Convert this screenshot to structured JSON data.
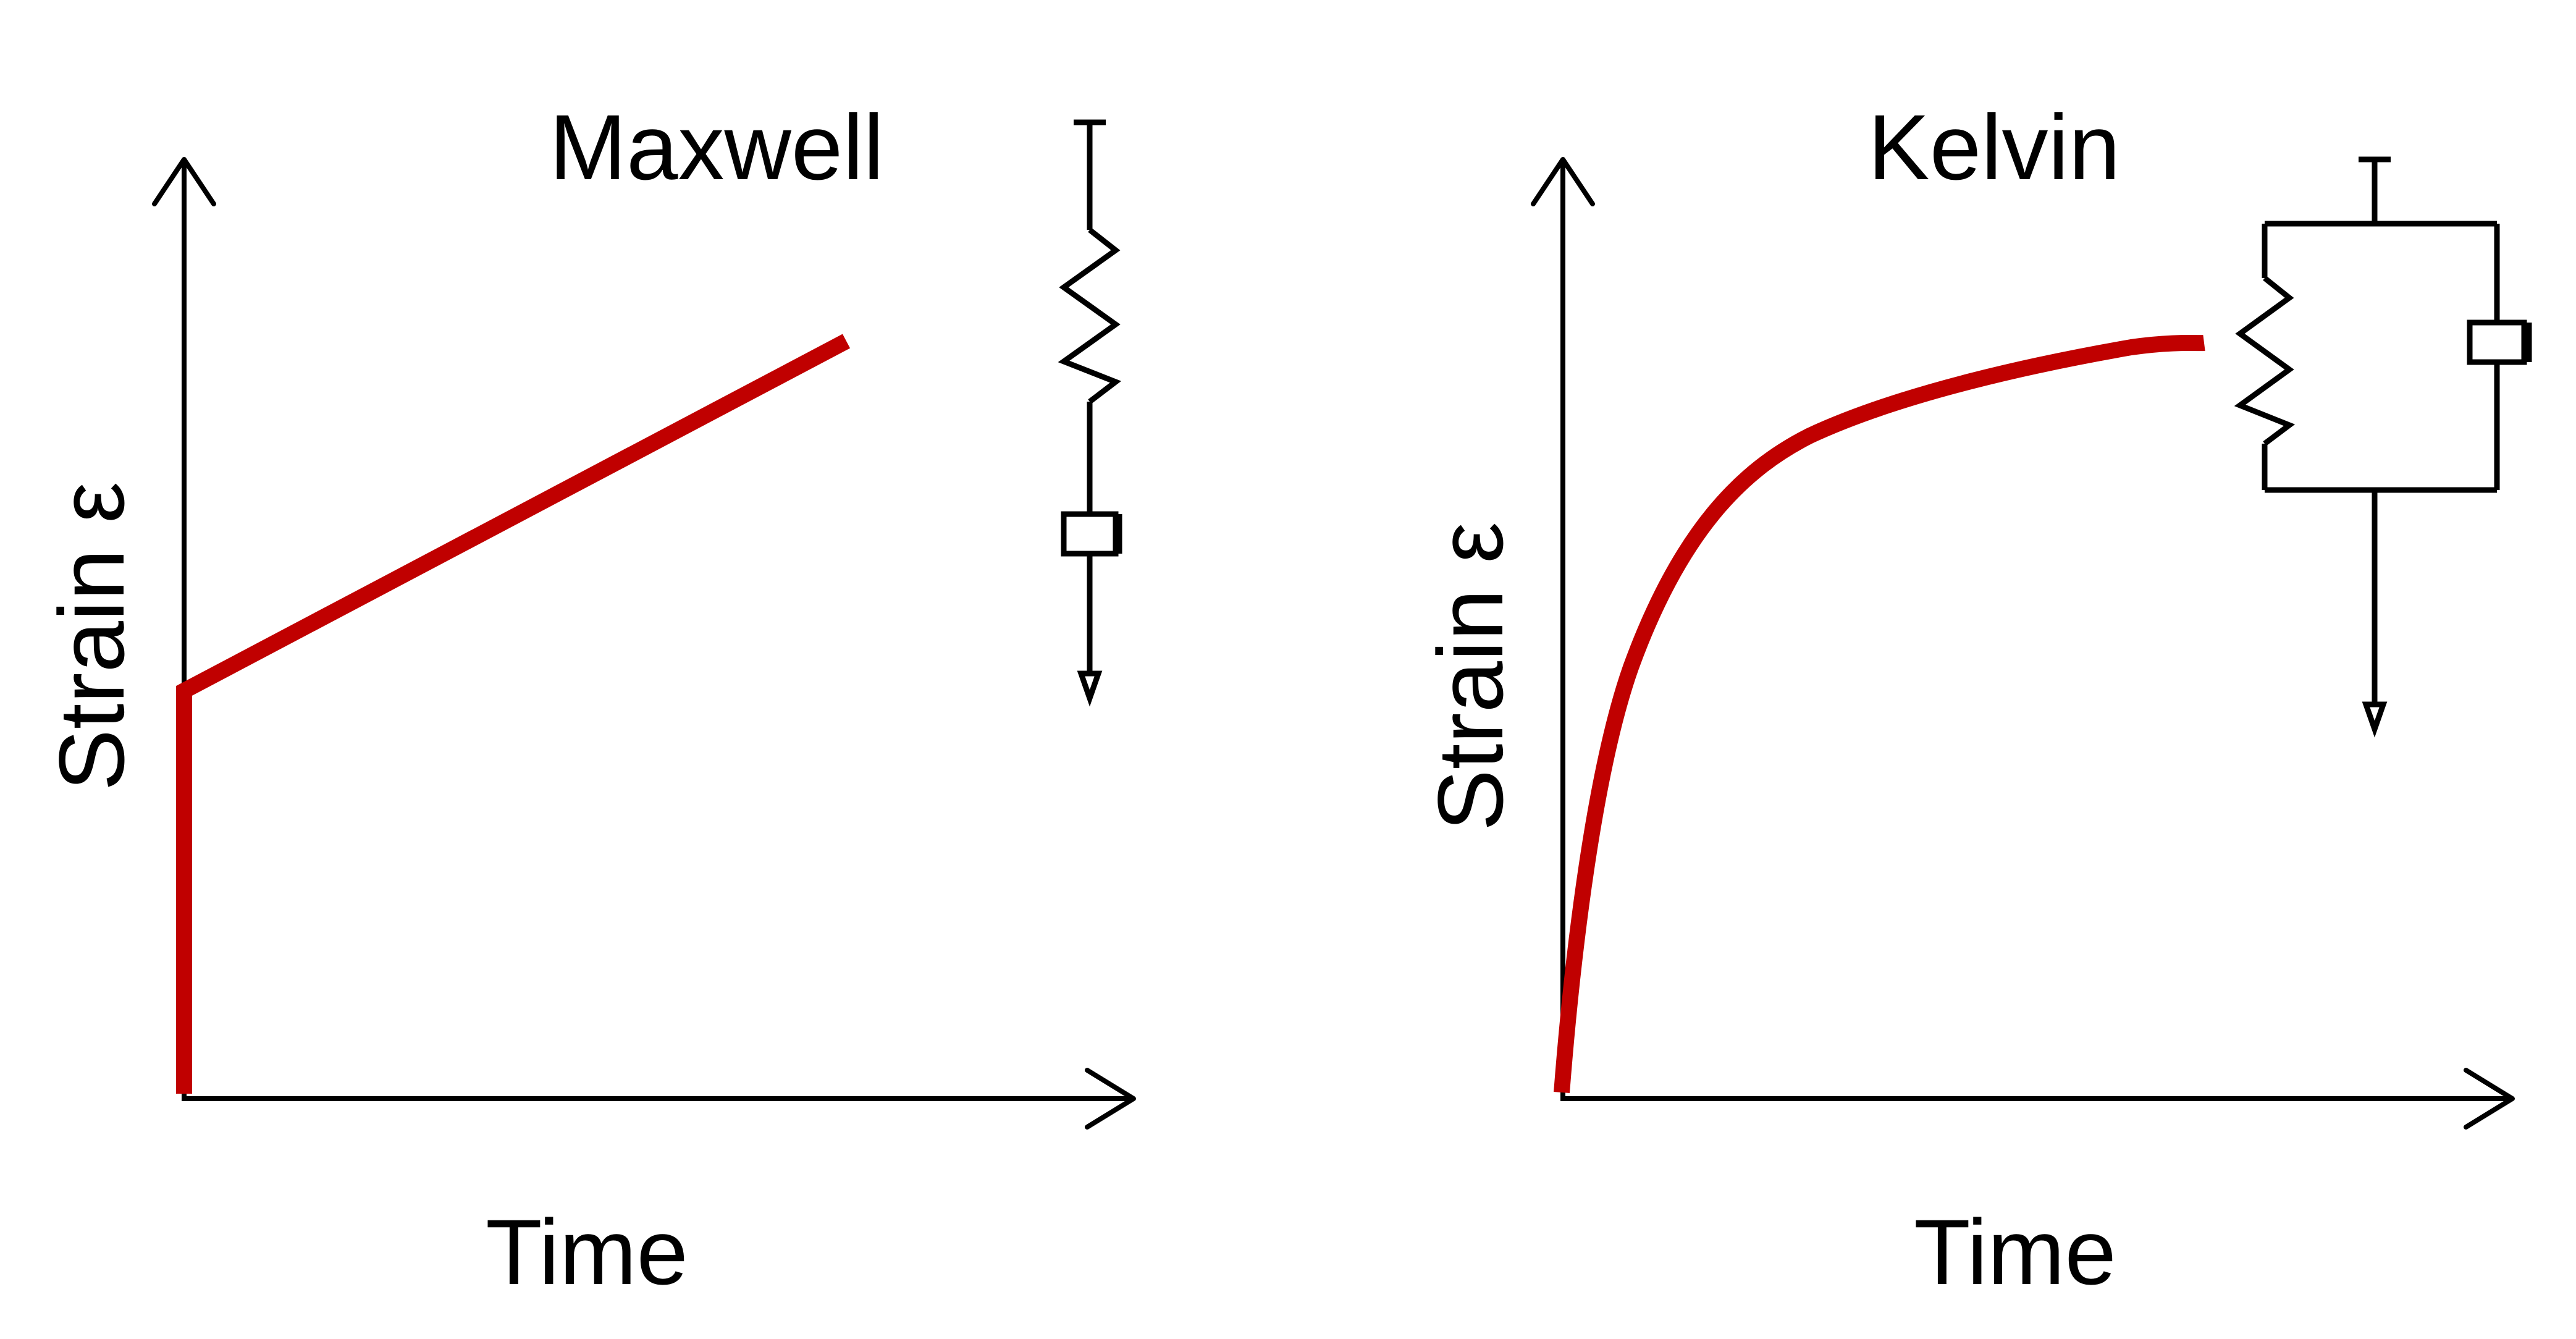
{
  "colors": {
    "curve": "#c00000",
    "ink": "#000000",
    "background": "#ffffff"
  },
  "panels": [
    {
      "id": "maxwell",
      "title": "Maxwell",
      "ylabel": "Strain ε",
      "xlabel": "Time",
      "model": "spring and dashpot in series",
      "curve_shape": "instantaneous jump then linear creep"
    },
    {
      "id": "kelvin",
      "title": "Kelvin",
      "ylabel": "Strain ε",
      "xlabel": "Time",
      "model": "spring and dashpot in parallel",
      "curve_shape": "delayed elastic creep approaching a limit"
    }
  ]
}
